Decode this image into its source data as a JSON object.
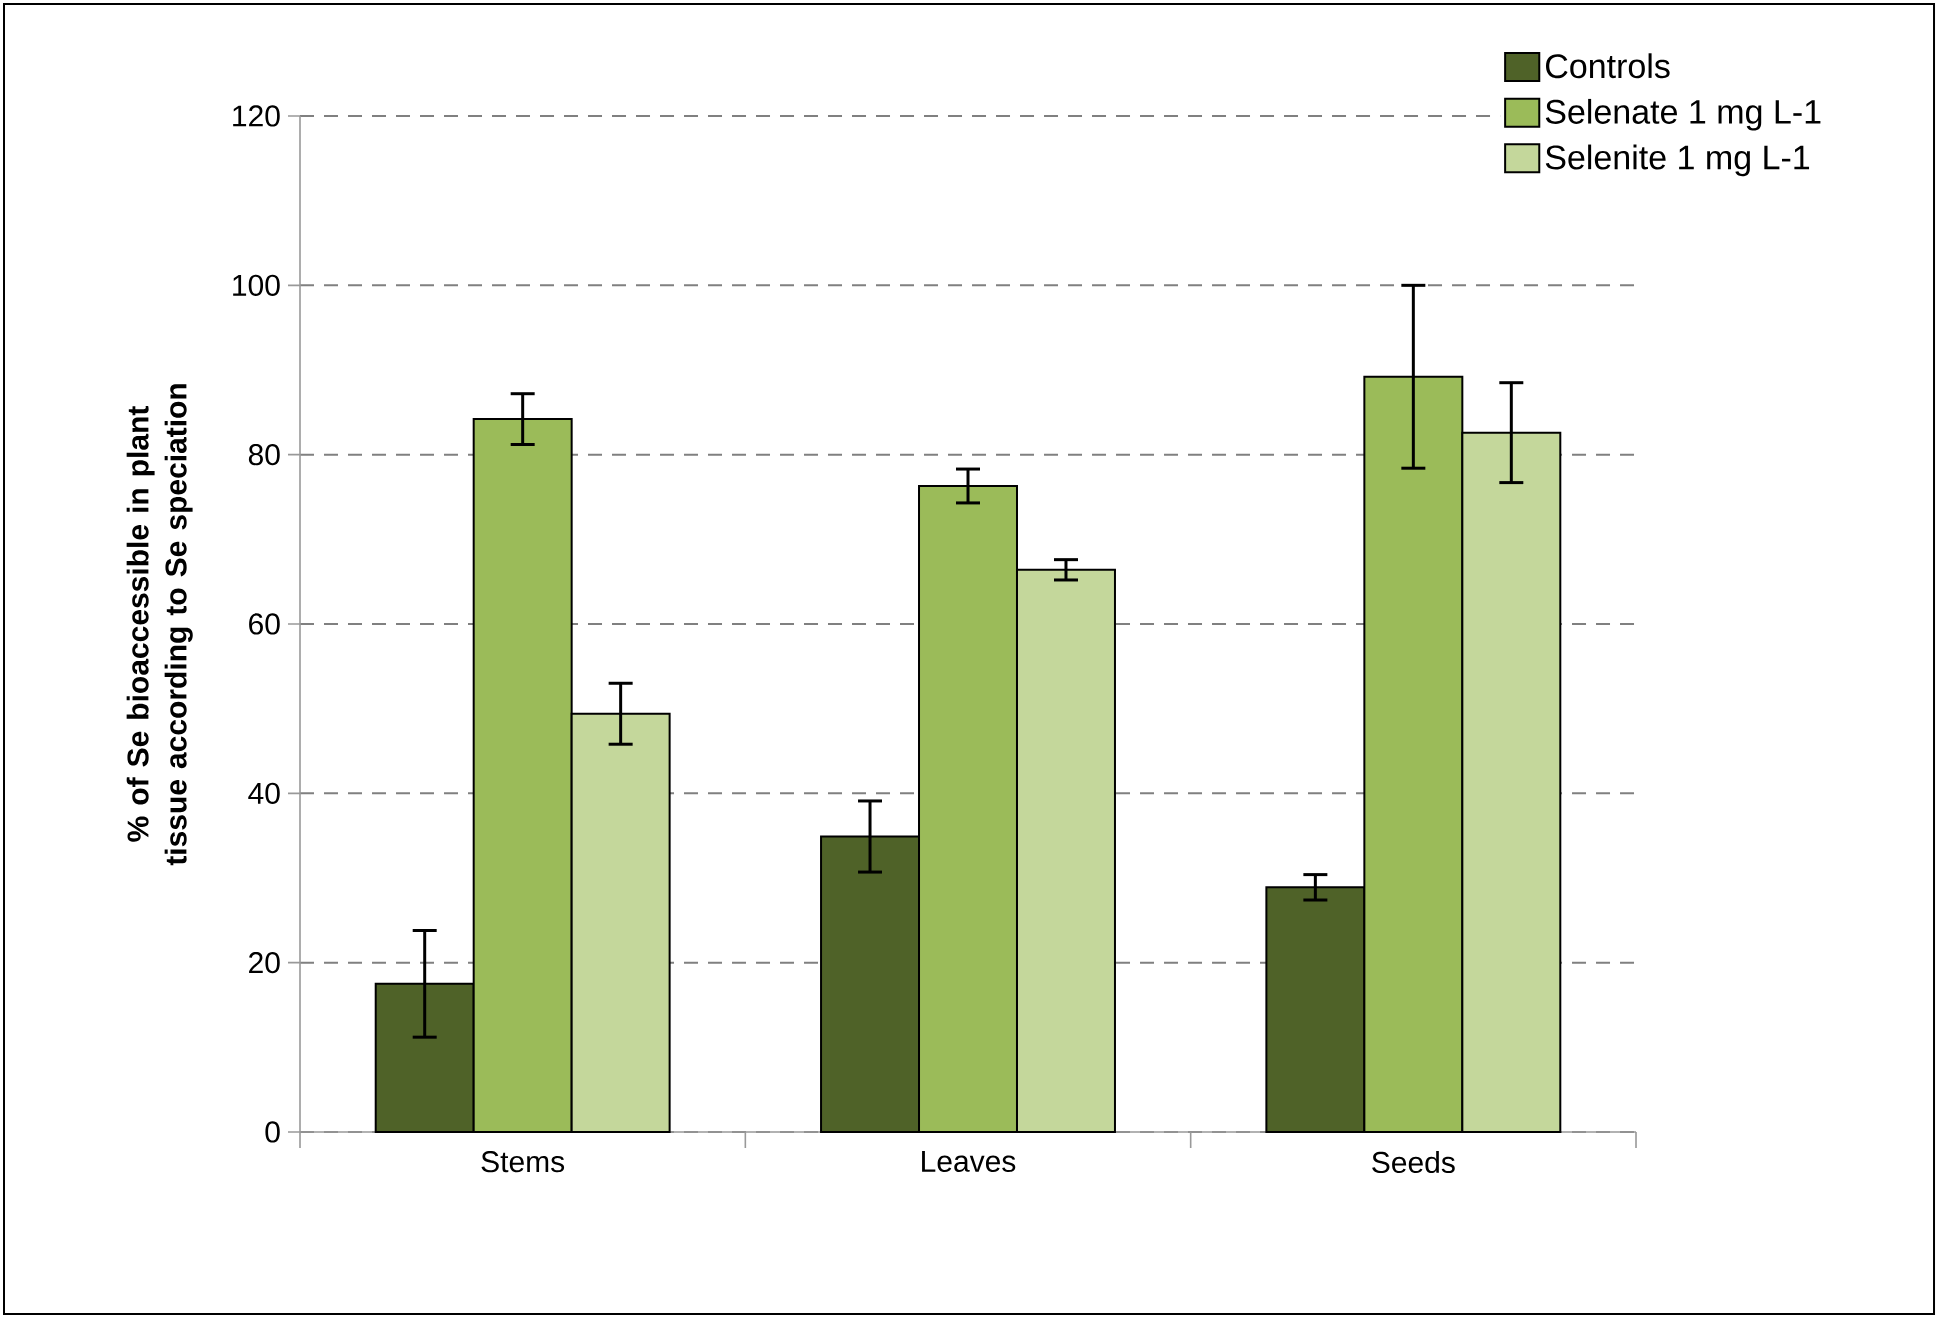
{
  "chart_data": {
    "type": "bar",
    "ylabel": "% of Se bioaccessible in plant tissue according to Se speciation",
    "categories": [
      "Stems",
      "Leaves",
      "Seeds"
    ],
    "series": [
      {
        "name": "Controls",
        "color": "#4f6228",
        "values": [
          17.5,
          34.9,
          28.9
        ],
        "errors": [
          6.3,
          4.2,
          1.5
        ]
      },
      {
        "name": "Selenate 1 mg L-1",
        "color": "#9bbb59",
        "values": [
          84.2,
          76.3,
          89.2
        ],
        "errors": [
          3.0,
          2.0,
          10.8
        ]
      },
      {
        "name": "Selenite 1 mg L-1",
        "color": "#c4d79b",
        "values": [
          49.4,
          66.4,
          82.6
        ],
        "errors": [
          3.6,
          1.2,
          5.9
        ]
      }
    ],
    "ylim": [
      0,
      120
    ],
    "yticks": [
      0,
      20,
      40,
      60,
      80,
      100,
      120
    ],
    "grid": "y",
    "legend": "top right"
  }
}
